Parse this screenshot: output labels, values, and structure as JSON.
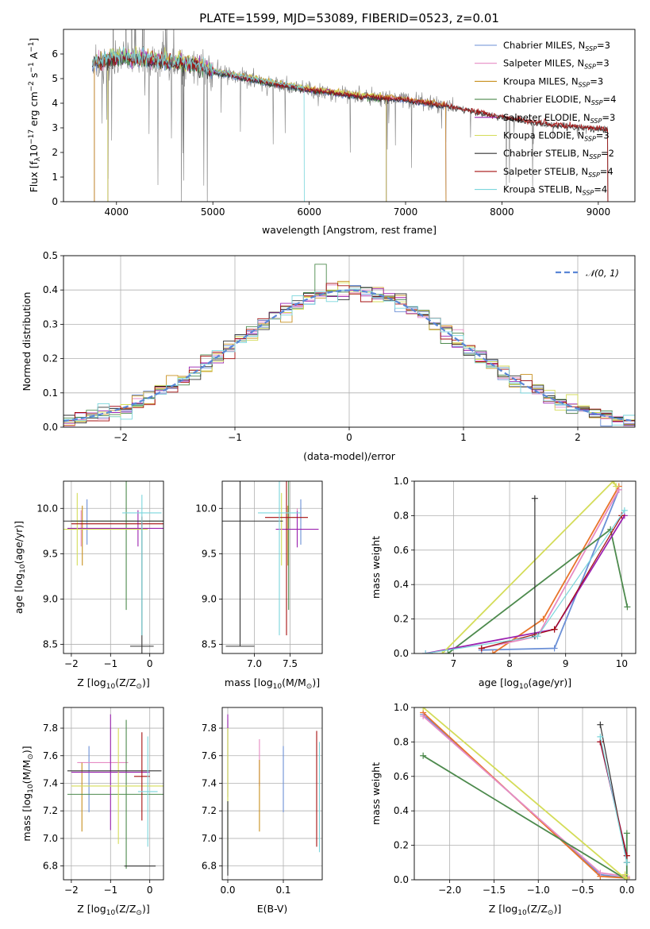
{
  "figure": {
    "title": "PLATE=1599, MJD=53089, FIBERID=0523, z=0.01"
  },
  "colors": {
    "Chabrier MILES": "#6b8fd6",
    "Salpeter MILES": "#e68bc4",
    "Kroupa MILES": "#c8901e",
    "Chabrier ELODIE": "#4d8a4d",
    "Salpeter ELODIE": "#9b22b0",
    "Kroupa ELODIE": "#d4dc58",
    "Chabrier STELIB": "#333333",
    "Salpeter STELIB": "#a50f0f",
    "Kroupa STELIB": "#7bd6dc",
    "data": "#808080",
    "normal": "#5a86d6",
    "orange": "#e8742a"
  },
  "chart_data": [
    {
      "id": "spectrum",
      "type": "line",
      "xlabel": "wavelength [Angstrom, rest frame]",
      "ylabel_parts": [
        "Flux [f",
        "λ",
        "10",
        "−17",
        " erg cm",
        "−2",
        " s",
        "−1",
        " A",
        "−1",
        "]"
      ],
      "xlim": [
        3450,
        9380
      ],
      "ylim": [
        0,
        7.0
      ],
      "xticks": [
        4000,
        5000,
        6000,
        7000,
        8000,
        9000
      ],
      "yticks": [
        0,
        1,
        2,
        3,
        4,
        5,
        6
      ],
      "grid": false,
      "legend_position": "upper-right",
      "legend": [
        {
          "name": "Chabrier MILES",
          "sub": "SSP",
          "n": "3",
          "color": "#6b8fd6"
        },
        {
          "name": "Salpeter MILES",
          "sub": "SSP",
          "n": "3",
          "color": "#e68bc4"
        },
        {
          "name": "Kroupa MILES",
          "sub": "SSP",
          "n": "3",
          "color": "#c8901e"
        },
        {
          "name": "Chabrier ELODIE",
          "sub": "SSP",
          "n": "4",
          "color": "#4d8a4d"
        },
        {
          "name": "Salpeter ELODIE",
          "sub": "SSP",
          "n": "3",
          "color": "#9b22b0"
        },
        {
          "name": "Kroupa ELODIE",
          "sub": "SSP",
          "n": "3",
          "color": "#d4dc58"
        },
        {
          "name": "Chabrier STELIB",
          "sub": "SSP",
          "n": "2",
          "color": "#333333"
        },
        {
          "name": "Salpeter STELIB",
          "sub": "SSP",
          "n": "4",
          "color": "#a50f0f"
        },
        {
          "name": "Kroupa STELIB",
          "sub": "SSP",
          "n": "4",
          "color": "#7bd6dc"
        }
      ],
      "continuum": [
        [
          3750,
          5.6
        ],
        [
          4000,
          5.9
        ],
        [
          4400,
          5.75
        ],
        [
          4800,
          5.6
        ],
        [
          5000,
          5.3
        ],
        [
          5500,
          4.9
        ],
        [
          6000,
          4.55
        ],
        [
          6500,
          4.3
        ],
        [
          7000,
          4.15
        ],
        [
          7500,
          3.85
        ],
        [
          8000,
          3.45
        ],
        [
          8500,
          3.15
        ],
        [
          9100,
          2.95
        ]
      ],
      "model_ranges": {
        "MILES": [
          3750,
          7420
        ],
        "ELODIE": [
          3890,
          6800
        ],
        "STELIB": [
          3750,
          9100
        ],
        "Kroupa STELIB": [
          3750,
          5950
        ]
      }
    },
    {
      "id": "residual-histogram",
      "type": "step",
      "xlabel": "(data-model)/error",
      "ylabel": "Normed distribution",
      "xlim": [
        -2.5,
        2.5
      ],
      "ylim": [
        0,
        0.5
      ],
      "xticks": [
        -2,
        -1,
        0,
        1,
        2
      ],
      "yticks": [
        0.0,
        0.1,
        0.2,
        0.3,
        0.4,
        0.5
      ],
      "grid": true,
      "legend_position": "upper-right",
      "legend_label": "𝒩(0, 1)",
      "bin_width": 0.1,
      "bin_start": -2.5,
      "reference": {
        "name": "N(0,1)",
        "mean": 0,
        "sigma": 1
      }
    },
    {
      "id": "age-vs-Z",
      "type": "errorbar",
      "xlabel_parts": [
        "Z [log",
        "10",
        "(Z/Z",
        "⊙",
        ")]"
      ],
      "ylabel_parts": [
        "age  [log",
        "10",
        "(age/yr)]"
      ],
      "xlim": [
        -2.2,
        0.35
      ],
      "ylim": [
        8.4,
        10.3
      ],
      "xticks": [
        -2,
        -1,
        0
      ],
      "yticks": [
        8.5,
        9.0,
        9.5,
        10.0
      ],
      "grid": true,
      "points": [
        {
          "model": "Chabrier MILES",
          "x": -1.6,
          "y": 9.85,
          "xerr": 0.0,
          "yerr": 0.25
        },
        {
          "model": "Salpeter MILES",
          "x": -1.75,
          "y": 9.78,
          "xerr": 0.0,
          "yerr": 0.2
        },
        {
          "model": "Kroupa MILES",
          "x": -1.72,
          "y": 9.7,
          "xerr": 0.0,
          "yerr": 0.33
        },
        {
          "model": "Chabrier ELODIE",
          "x": -0.6,
          "y": 9.86,
          "xerr": 1.4,
          "yerr": 0.98
        },
        {
          "model": "Salpeter ELODIE",
          "x": -0.3,
          "y": 9.78,
          "xerr": 1.8,
          "yerr": 0.2
        },
        {
          "model": "Kroupa ELODIE",
          "x": -1.85,
          "y": 9.77,
          "xerr": 1.8,
          "yerr": 0.4
        },
        {
          "model": "Chabrier STELIB",
          "x": -0.2,
          "y": 9.86,
          "xerr": 2.0,
          "yerr": 0.0
        },
        {
          "model": "Chabrier STELIB",
          "x": -0.2,
          "y": 8.48,
          "xerr": 0.3,
          "yerr": 1.38
        },
        {
          "model": "Salpeter STELIB",
          "x": -0.2,
          "y": 9.83,
          "xerr": 1.8,
          "yerr": 0.08
        },
        {
          "model": "Kroupa STELIB",
          "x": -0.2,
          "y": 9.95,
          "xerr": 0.5,
          "yerr": 0.2
        },
        {
          "model": "Kroupa STELIB",
          "x": -0.2,
          "y": 9.2,
          "xerr": 0.0,
          "yerr": 0.6
        }
      ]
    },
    {
      "id": "age-vs-mass",
      "type": "errorbar",
      "xlabel_parts": [
        "mass [log",
        "10",
        "(M/M",
        "⊙",
        ")]"
      ],
      "ylabel": "",
      "xlim": [
        6.55,
        7.95
      ],
      "ylim": [
        8.4,
        10.3
      ],
      "xticks": [
        7.0,
        7.5
      ],
      "yticks": [
        8.5,
        9.0,
        9.5,
        10.0
      ],
      "grid": true,
      "points": [
        {
          "model": "Chabrier MILES",
          "x": 7.65,
          "y": 9.85,
          "xerr": 0.0,
          "yerr": 0.25
        },
        {
          "model": "Salpeter MILES",
          "x": 7.6,
          "y": 9.8,
          "xerr": 0.0,
          "yerr": 0.2
        },
        {
          "model": "Kroupa MILES",
          "x": 7.47,
          "y": 9.7,
          "xerr": 0.0,
          "yerr": 0.33
        },
        {
          "model": "Chabrier ELODIE",
          "x": 7.48,
          "y": 9.86,
          "xerr": 0.0,
          "yerr": 0.98
        },
        {
          "model": "Salpeter ELODIE",
          "x": 7.6,
          "y": 9.77,
          "xerr": 0.3,
          "yerr": 0.2
        },
        {
          "model": "Kroupa ELODIE",
          "x": 7.38,
          "y": 9.77,
          "xerr": 0.0,
          "yerr": 0.4
        },
        {
          "model": "Chabrier STELIB",
          "x": 6.8,
          "y": 9.86,
          "xerr": 0.6,
          "yerr": 1.38
        },
        {
          "model": "Chabrier STELIB",
          "x": 6.8,
          "y": 8.48,
          "xerr": 0.2,
          "yerr": 0.0
        },
        {
          "model": "Salpeter STELIB",
          "x": 7.45,
          "y": 9.9,
          "xerr": 0.3,
          "yerr": 1.3
        },
        {
          "model": "Kroupa STELIB",
          "x": 7.35,
          "y": 9.95,
          "xerr": 0.3,
          "yerr": 1.35
        }
      ]
    },
    {
      "id": "weight-vs-age",
      "type": "line",
      "xlabel_parts": [
        "age  [log",
        "10",
        "(age/yr)]"
      ],
      "ylabel": "mass weight",
      "xlim": [
        6.3,
        10.25
      ],
      "ylim": [
        0,
        1.0
      ],
      "xticks": [
        7,
        8,
        9,
        10
      ],
      "yticks": [
        0.0,
        0.2,
        0.4,
        0.6,
        0.8,
        1.0
      ],
      "grid": true,
      "series": [
        {
          "model": "Chabrier MILES",
          "x": [
            7.5,
            8.8,
            9.95
          ],
          "y": [
            0.02,
            0.03,
            0.95
          ]
        },
        {
          "model": "Kroupa MILES",
          "x": [
            7.7,
            8.6,
            9.95
          ],
          "y": [
            0.0,
            0.2,
            0.97
          ]
        },
        {
          "model": "Salpeter MILES",
          "x": [
            7.5,
            8.5,
            9.95
          ],
          "y": [
            0.03,
            0.1,
            0.95
          ]
        },
        {
          "model": "Chabrier ELODIE",
          "x": [
            6.9,
            9.8,
            10.1
          ],
          "y": [
            0.0,
            0.72,
            0.27
          ]
        },
        {
          "model": "Salpeter ELODIE",
          "x": [
            6.5,
            8.8,
            10.05
          ],
          "y": [
            0.0,
            0.14,
            0.8
          ]
        },
        {
          "model": "Kroupa ELODIE",
          "x": [
            6.8,
            9.85,
            9.9
          ],
          "y": [
            0.0,
            1.0,
            0.97
          ]
        },
        {
          "model": "Chabrier STELIB",
          "x": [
            8.45,
            8.45
          ],
          "y": [
            0.1,
            0.9
          ]
        },
        {
          "model": "Salpeter STELIB",
          "x": [
            7.5,
            8.8,
            10.0
          ],
          "y": [
            0.03,
            0.14,
            0.8
          ]
        },
        {
          "model": "Kroupa STELIB",
          "x": [
            6.5,
            8.5,
            10.05
          ],
          "y": [
            0.0,
            0.1,
            0.83
          ]
        }
      ]
    },
    {
      "id": "mass-vs-Z",
      "type": "errorbar",
      "xlabel_parts": [
        "Z [log",
        "10",
        "(Z/Z",
        "⊙",
        ")]"
      ],
      "ylabel_parts": [
        "mass [log",
        "10",
        "(M/M",
        "⊙",
        ")]"
      ],
      "xlim": [
        -2.2,
        0.35
      ],
      "ylim": [
        6.7,
        7.95
      ],
      "xticks": [
        -2,
        -1,
        0
      ],
      "yticks": [
        6.8,
        7.0,
        7.2,
        7.4,
        7.6,
        7.8
      ],
      "grid": true,
      "points": [
        {
          "model": "Chabrier MILES",
          "x": -1.55,
          "y": 7.43,
          "xerr": 0.0,
          "yerr": 0.24
        },
        {
          "model": "Salpeter MILES",
          "x": -1.2,
          "y": 7.55,
          "xerr": 0.65,
          "yerr": 0.0
        },
        {
          "model": "Kroupa MILES",
          "x": -1.73,
          "y": 7.3,
          "xerr": 0.0,
          "yerr": 0.25
        },
        {
          "model": "Chabrier ELODIE",
          "x": -0.6,
          "y": 7.32,
          "xerr": 1.5,
          "yerr": 0.54
        },
        {
          "model": "Salpeter ELODIE",
          "x": -1.0,
          "y": 7.48,
          "xerr": 1.0,
          "yerr": 0.42
        },
        {
          "model": "Kroupa ELODIE",
          "x": -0.8,
          "y": 7.38,
          "xerr": 1.2,
          "yerr": 0.42
        },
        {
          "model": "Chabrier STELIB",
          "x": -0.9,
          "y": 7.49,
          "xerr": 1.2,
          "yerr": 0.0
        },
        {
          "model": "Chabrier STELIB",
          "x": -0.25,
          "y": 6.8,
          "xerr": 0.4,
          "yerr": 0.0
        },
        {
          "model": "Salpeter STELIB",
          "x": -0.2,
          "y": 7.45,
          "xerr": 0.2,
          "yerr": 0.32
        },
        {
          "model": "Kroupa STELIB",
          "x": -0.05,
          "y": 7.34,
          "xerr": 0.25,
          "yerr": 0.4
        }
      ]
    },
    {
      "id": "mass-vs-EBV",
      "type": "errorbar",
      "xlabel": "E(B-V)",
      "ylabel": "",
      "xlim": [
        -0.01,
        0.17
      ],
      "ylim": [
        6.7,
        7.95
      ],
      "xticks": [
        0.0,
        0.1
      ],
      "yticks": [
        6.8,
        7.0,
        7.2,
        7.4,
        7.6,
        7.8
      ],
      "grid": true,
      "points": [
        {
          "model": "Chabrier MILES",
          "x": 0.1,
          "y": 7.43,
          "yerr": 0.24
        },
        {
          "model": "Salpeter MILES",
          "x": 0.057,
          "y": 7.55,
          "yerr": 0.17
        },
        {
          "model": "Kroupa MILES",
          "x": 0.057,
          "y": 7.31,
          "yerr": 0.26
        },
        {
          "model": "Chabrier ELODIE",
          "x": 0.0,
          "y": 7.32,
          "yerr": 0.54
        },
        {
          "model": "Salpeter ELODIE",
          "x": 0.0,
          "y": 7.6,
          "yerr": 0.3
        },
        {
          "model": "Kroupa ELODIE",
          "x": 0.0,
          "y": 7.35,
          "yerr": 0.45
        },
        {
          "model": "Chabrier STELIB",
          "x": 0.0,
          "y": 7.0,
          "yerr": 0.27
        },
        {
          "model": "Salpeter STELIB",
          "x": 0.16,
          "y": 7.36,
          "yerr": 0.42
        },
        {
          "model": "Kroupa STELIB",
          "x": 0.165,
          "y": 7.3,
          "yerr": 0.4
        }
      ]
    },
    {
      "id": "weight-vs-Z",
      "type": "line",
      "xlabel_parts": [
        "Z [log",
        "10",
        "(Z/Z",
        "⊙",
        ")]"
      ],
      "ylabel": "mass weight",
      "xlim": [
        -2.4,
        0.1
      ],
      "ylim": [
        0,
        1.0
      ],
      "xticks": [
        -2.0,
        -1.5,
        -1.0,
        -0.5,
        0.0
      ],
      "yticks": [
        0.0,
        0.2,
        0.4,
        0.6,
        0.8,
        1.0
      ],
      "grid": true,
      "series": [
        {
          "model": "Chabrier MILES",
          "x": [
            -2.3,
            -0.3,
            0.0
          ],
          "y": [
            0.96,
            0.03,
            0.01
          ]
        },
        {
          "model": "Kroupa MILES",
          "x": [
            -2.3,
            -0.3,
            0.0
          ],
          "y": [
            0.97,
            0.02,
            0.01
          ]
        },
        {
          "model": "Salpeter MILES",
          "x": [
            -2.3,
            -0.3,
            0.0
          ],
          "y": [
            0.95,
            0.04,
            0.02
          ]
        },
        {
          "model": "Chabrier ELODIE",
          "x": [
            -2.3,
            0.0,
            0.0
          ],
          "y": [
            0.72,
            0.0,
            0.27
          ]
        },
        {
          "model": "Salpeter ELODIE",
          "x": [
            -0.3,
            0.0
          ],
          "y": [
            0.8,
            0.14
          ]
        },
        {
          "model": "Kroupa ELODIE",
          "x": [
            -2.3,
            0.0,
            -0.02
          ],
          "y": [
            1.0,
            0.0,
            0.03
          ]
        },
        {
          "model": "Chabrier STELIB",
          "x": [
            -0.3,
            0.0
          ],
          "y": [
            0.9,
            0.1
          ]
        },
        {
          "model": "Salpeter STELIB",
          "x": [
            -0.3,
            0.0
          ],
          "y": [
            0.8,
            0.14
          ]
        },
        {
          "model": "Kroupa STELIB",
          "x": [
            -0.3,
            0.0
          ],
          "y": [
            0.83,
            0.1
          ]
        }
      ]
    }
  ]
}
